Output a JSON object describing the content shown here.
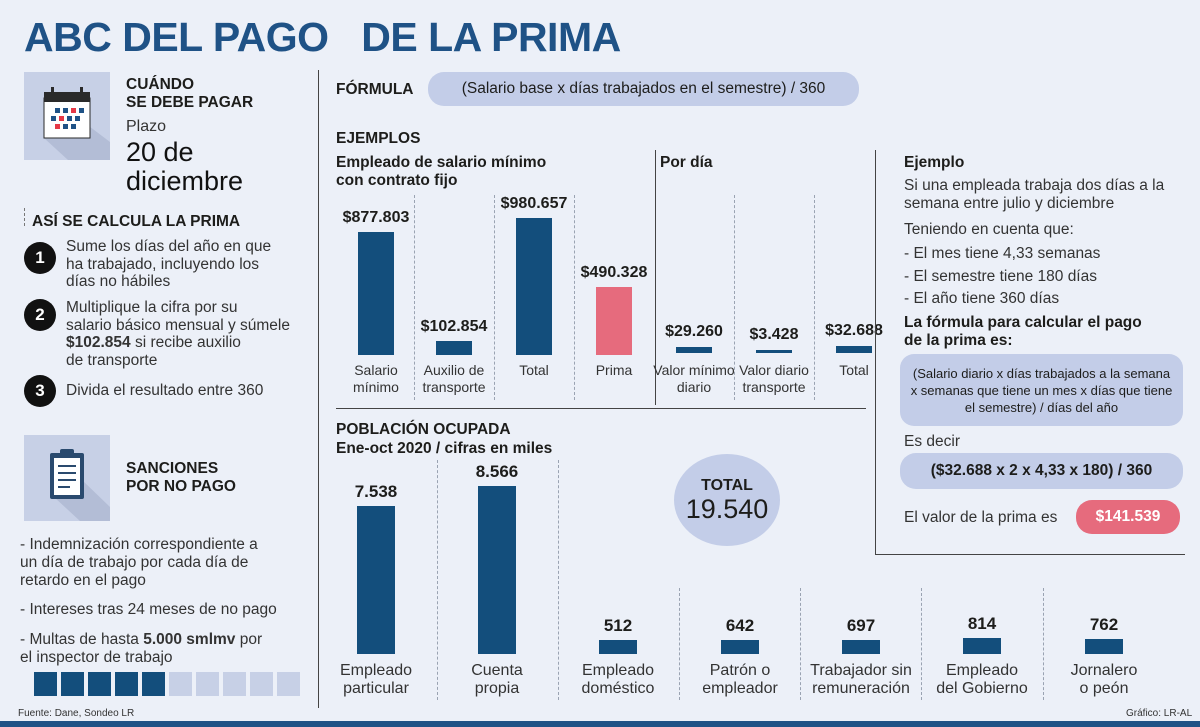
{
  "title": "ABC DEL PAGO   DE LA PRIMA",
  "when": {
    "heading_1": "CUÁNDO",
    "heading_2": "SE DEBE PAGAR",
    "plazo_label": "Plazo",
    "date_1": "20 de",
    "date_2": "diciembre",
    "icon": "calendar-icon"
  },
  "calc": {
    "heading": "ASÍ SE CALCULA LA PRIMA",
    "steps": [
      {
        "num": "1",
        "line1": "Sume los días del año en que",
        "line2": "ha trabajado, incluyendo los",
        "line3": "días no hábiles"
      },
      {
        "num": "2",
        "line1": "Multiplique la cifra por su",
        "line2": "salario básico mensual y súmele",
        "line3_bold": "$102.854",
        "line3_rest": " si recibe auxilio",
        "line4": "de transporte"
      },
      {
        "num": "3",
        "line1": "Divida el resultado entre 360"
      }
    ]
  },
  "sanctions": {
    "heading_1": "SANCIONES",
    "heading_2": "POR NO PAGO",
    "icon": "clipboard-icon",
    "items": [
      {
        "line1": "- Indemnización correspondiente a",
        "line2": "un día de trabajo por cada día de",
        "line3": "retardo en el pago"
      },
      {
        "line1": "- Intereses tras 24 meses de no pago"
      },
      {
        "line1_pre": "- Multas de hasta ",
        "line1_bold": "5.000 smlmv",
        "line1_post": " por",
        "line2": "el inspector de trabajo"
      }
    ]
  },
  "formula": {
    "label": "FÓRMULA",
    "text": "(Salario base x días trabajados en el semestre) / 360"
  },
  "examples": {
    "label": "EJEMPLOS",
    "min_wage_title_1": "Empleado de salario mínimo",
    "min_wage_title_2": "con contrato fijo",
    "per_day_title": "Por día",
    "min_wage_bars": [
      {
        "value": 877803,
        "display": "$877.803",
        "label_1": "Salario",
        "label_2": "mínimo"
      },
      {
        "value": 102854,
        "display": "$102.854",
        "label_1": "Auxilio de",
        "label_2": "transporte"
      },
      {
        "value": 980657,
        "display": "$980.657",
        "label_1": "Total",
        "label_2": ""
      },
      {
        "value": 490328,
        "display": "$490.328",
        "label_1": "Prima",
        "label_2": ""
      }
    ],
    "per_day_bars": [
      {
        "value": 29260,
        "display": "$29.260",
        "label_1": "Valor mínimo",
        "label_2": "diario"
      },
      {
        "value": 3428,
        "display": "$3.428",
        "label_1": "Valor diario",
        "label_2": "transporte"
      },
      {
        "value": 32688,
        "display": "$32.688",
        "label_1": "Total",
        "label_2": ""
      }
    ]
  },
  "example_box": {
    "title": "Ejemplo",
    "intro_1": "Si una empleada trabaja dos días a la",
    "intro_2": "semana entre julio y diciembre",
    "given": "Teniendo en cuenta que:",
    "facts": [
      "- El mes tiene 4,33 semanas",
      "- El semestre tiene 180 días",
      "- El año tiene 360 días"
    ],
    "formula_title_1": "La fórmula para calcular el pago",
    "formula_title_2": "de la prima es:",
    "formula_1": "(Salario diario x días trabajados a la semana",
    "formula_2": "x semanas que tiene un mes x días que tiene",
    "formula_3": "el semestre) / días del año",
    "es_decir": "Es decir",
    "calc": "($32.688 x 2 x 4,33 x 180) / 360",
    "result_label": "El valor de la prima es",
    "result": "$141.539"
  },
  "population": {
    "title_1": "POBLACIÓN OCUPADA",
    "title_2": "Ene-oct 2020 / cifras en miles",
    "total_label": "TOTAL",
    "total_value": "19.540",
    "categories": [
      {
        "value": 7538,
        "display": "7.538",
        "label_1": "Empleado",
        "label_2": "particular"
      },
      {
        "value": 8566,
        "display": "8.566",
        "label_1": "Cuenta",
        "label_2": "propia"
      },
      {
        "value": 512,
        "display": "512",
        "label_1": "Empleado",
        "label_2": "doméstico"
      },
      {
        "value": 642,
        "display": "642",
        "label_1": "Patrón o",
        "label_2": "empleador"
      },
      {
        "value": 697,
        "display": "697",
        "label_1": "Trabajador sin",
        "label_2": "remuneración"
      },
      {
        "value": 814,
        "display": "814",
        "label_1": "Empleado",
        "label_2": "del Gobierno"
      },
      {
        "value": 762,
        "display": "762",
        "label_1": "Jornalero",
        "label_2": "o peón"
      }
    ]
  },
  "squares": {
    "filled": 5,
    "total": 10
  },
  "footer": {
    "source": "Fuente: Dane, Sondeo LR",
    "credit": "Gráfico: LR-AL"
  },
  "colors": {
    "primary": "#134e7c",
    "title": "#1f5286",
    "accent": "#e66b7d",
    "pill": "#c3cde8",
    "background": "#ecf0f8"
  }
}
